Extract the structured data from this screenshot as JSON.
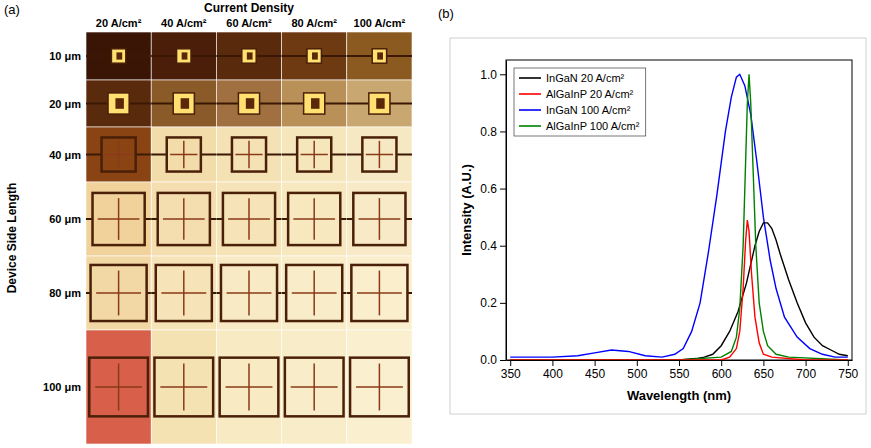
{
  "panel_a": {
    "panel_label": "(a)",
    "title": "Current Density",
    "columns": [
      "20 A/cm²",
      "40 A/cm²",
      "60 A/cm²",
      "80 A/cm²",
      "100 A/cm²"
    ],
    "row_title": "Device Side Length",
    "rows": [
      "10 μm",
      "20 μm",
      "40 μm",
      "60 μm",
      "80 μm",
      "100 μm"
    ]
  },
  "chart_data": {
    "type": "line",
    "panel_label": "(b)",
    "x_label": "Wavelength (nm)",
    "y_label": "Intensity (A.U.)",
    "xlim": [
      345,
      755
    ],
    "ylim": [
      0,
      1.05
    ],
    "xticks": [
      350,
      400,
      450,
      500,
      550,
      600,
      650,
      700,
      750
    ],
    "yticks": [
      {
        "value": 0,
        "label": "0.0"
      },
      {
        "value": 0.2,
        "label": "0.2"
      },
      {
        "value": 0.4,
        "label": "0.4"
      },
      {
        "value": 0.6,
        "label": "0.6"
      },
      {
        "value": 0.8,
        "label": "0.8"
      },
      {
        "value": 1,
        "label": "1.0"
      }
    ],
    "grid": false,
    "legend": "upper left",
    "series": [
      {
        "name": "InGaN 20 A/cm²",
        "color": "#000000",
        "x": [
          350,
          400,
          450,
          500,
          550,
          570,
          580,
          590,
          600,
          610,
          620,
          630,
          640,
          645,
          650,
          655,
          660,
          665,
          670,
          680,
          690,
          700,
          710,
          720,
          730,
          740,
          750
        ],
        "values": [
          0,
          0,
          0,
          0,
          0,
          0.005,
          0.01,
          0.02,
          0.05,
          0.1,
          0.17,
          0.27,
          0.4,
          0.45,
          0.48,
          0.48,
          0.46,
          0.42,
          0.37,
          0.28,
          0.2,
          0.13,
          0.08,
          0.05,
          0.035,
          0.02,
          0.015
        ]
      },
      {
        "name": "AlGaInP 20 A/cm²",
        "color": "#ff0000",
        "x": [
          350,
          400,
          450,
          500,
          550,
          600,
          610,
          618,
          622,
          626,
          629,
          631,
          633,
          636,
          640,
          645,
          650,
          660,
          700,
          750
        ],
        "values": [
          0,
          0,
          0,
          0,
          0,
          0,
          0.01,
          0.04,
          0.1,
          0.25,
          0.42,
          0.49,
          0.45,
          0.3,
          0.15,
          0.06,
          0.02,
          0.01,
          0,
          0
        ]
      },
      {
        "name": "InGaN 100 A/cm²",
        "color": "#0000ff",
        "x": [
          350,
          400,
          430,
          450,
          470,
          490,
          510,
          530,
          545,
          555,
          565,
          575,
          585,
          595,
          605,
          612,
          618,
          622,
          628,
          635,
          642,
          650,
          658,
          665,
          675,
          690,
          705,
          720,
          735,
          750
        ],
        "values": [
          0.01,
          0.01,
          0.015,
          0.025,
          0.035,
          0.03,
          0.015,
          0.01,
          0.02,
          0.04,
          0.1,
          0.2,
          0.38,
          0.58,
          0.8,
          0.92,
          0.99,
          1.0,
          0.96,
          0.86,
          0.7,
          0.5,
          0.35,
          0.25,
          0.15,
          0.08,
          0.04,
          0.02,
          0.01,
          0.01
        ]
      },
      {
        "name": "AlGaInP 100 A/cm²",
        "color": "#008000",
        "x": [
          350,
          400,
          450,
          500,
          550,
          600,
          612,
          618,
          622,
          626,
          629,
          631,
          633,
          635,
          638,
          641,
          645,
          650,
          655,
          665,
          680,
          750
        ],
        "values": [
          0,
          0,
          0,
          0,
          0,
          0.01,
          0.03,
          0.08,
          0.18,
          0.4,
          0.7,
          0.9,
          1.0,
          0.9,
          0.65,
          0.4,
          0.2,
          0.1,
          0.05,
          0.02,
          0.01,
          0
        ]
      }
    ]
  }
}
